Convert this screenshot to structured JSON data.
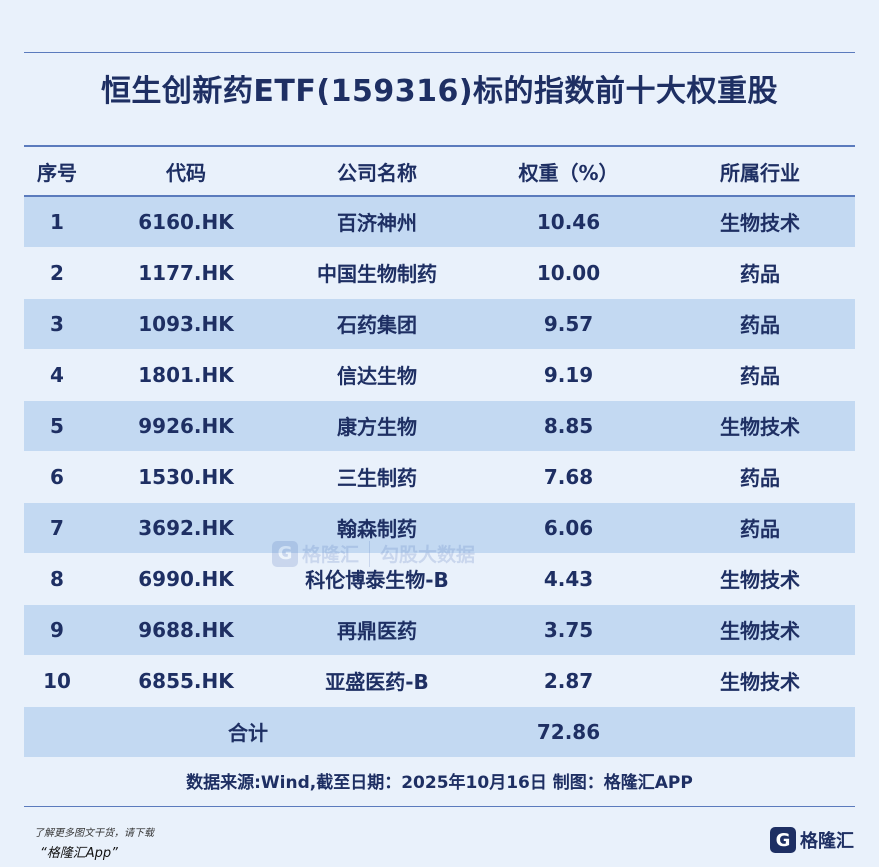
{
  "title": "恒生创新药ETF(159316)标的指数前十大权重股",
  "table": {
    "headers": [
      "序号",
      "代码",
      "公司名称",
      "权重（%）",
      "所属行业"
    ],
    "rows": [
      [
        "1",
        "6160.HK",
        "百济神州",
        "10.46",
        "生物技术"
      ],
      [
        "2",
        "1177.HK",
        "中国生物制药",
        "10.00",
        "药品"
      ],
      [
        "3",
        "1093.HK",
        "石药集团",
        "9.57",
        "药品"
      ],
      [
        "4",
        "1801.HK",
        "信达生物",
        "9.19",
        "药品"
      ],
      [
        "5",
        "9926.HK",
        "康方生物",
        "8.85",
        "生物技术"
      ],
      [
        "6",
        "1530.HK",
        "三生制药",
        "7.68",
        "药品"
      ],
      [
        "7",
        "3692.HK",
        "翰森制药",
        "6.06",
        "药品"
      ],
      [
        "8",
        "6990.HK",
        "科伦博泰生物-B",
        "4.43",
        "生物技术"
      ],
      [
        "9",
        "9688.HK",
        "再鼎医药",
        "3.75",
        "生物技术"
      ],
      [
        "10",
        "6855.HK",
        "亚盛医药-B",
        "2.87",
        "生物技术"
      ]
    ],
    "total_label": "合计",
    "total_value": "72.86"
  },
  "source": "数据来源:Wind,截至日期：2025年10月16日 制图：格隆汇APP",
  "footnote": {
    "line1": "了解更多图文干货，请下载",
    "line2": "“格隆汇App”"
  },
  "logo": {
    "mark": "G",
    "text": "格隆汇"
  },
  "watermark": {
    "mark": "G",
    "name": "格隆汇",
    "sub": "勾股大数据"
  },
  "colors": {
    "background": "#e9f1fb",
    "row_shade": "#c3d9f2",
    "text": "#1e2f63",
    "rule": "#5b7bbd"
  }
}
